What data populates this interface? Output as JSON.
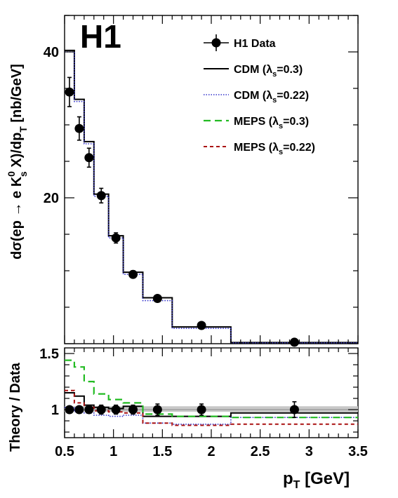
{
  "experiment_label": "H1",
  "colors": {
    "data": "#000000",
    "cdm_03": "#000000",
    "cdm_022": "#3333cc",
    "meps_03": "#22bb22",
    "meps_022": "#aa1111",
    "band": "#c8c8c8"
  },
  "chart_data": [
    {
      "type": "line",
      "panel": "main",
      "ylabel_parts": {
        "base": "dσ(ep → e K",
        "sup": "0",
        "sub": "s",
        "mid": " X)/dp",
        "sub2": "T",
        "unit": " [nb/GeV]"
      },
      "xlim": [
        0.5,
        3.5
      ],
      "ylim": [
        0,
        45
      ],
      "yticks": [
        20,
        40
      ],
      "ytick_labels": [
        "20",
        "40"
      ],
      "bin_edges": [
        0.5,
        0.6,
        0.7,
        0.8,
        0.95,
        1.1,
        1.3,
        1.6,
        2.2,
        3.5
      ],
      "data_points": [
        {
          "x": 0.55,
          "y": 34.5,
          "err": 2.0
        },
        {
          "x": 0.65,
          "y": 29.5,
          "err": 1.6
        },
        {
          "x": 0.75,
          "y": 25.5,
          "err": 1.3
        },
        {
          "x": 0.875,
          "y": 20.3,
          "err": 1.0
        },
        {
          "x": 1.025,
          "y": 14.5,
          "err": 0.7
        },
        {
          "x": 1.2,
          "y": 9.5,
          "err": 0.5
        },
        {
          "x": 1.45,
          "y": 6.2,
          "err": 0.3
        },
        {
          "x": 1.9,
          "y": 2.5,
          "err": 0.2
        },
        {
          "x": 2.85,
          "y": 0.2,
          "err": 0.1
        }
      ],
      "series": [
        {
          "name": "CDM (λs=0.3)",
          "style": "solid",
          "values": [
            40.2,
            33.5,
            27.7,
            20.5,
            14.8,
            9.8,
            6.3,
            2.3,
            0.15
          ]
        },
        {
          "name": "CDM (λs=0.22)",
          "style": "dotted",
          "values": [
            40.0,
            33.2,
            27.4,
            20.2,
            14.5,
            9.5,
            5.9,
            2.1,
            0.12
          ]
        }
      ]
    },
    {
      "type": "line",
      "panel": "ratio",
      "ylabel": "Theory / Data",
      "xlabel_parts": {
        "base": "p",
        "sub": "T",
        "unit": " [GeV]"
      },
      "xlim": [
        0.5,
        3.5
      ],
      "ylim": [
        0.75,
        1.55
      ],
      "yticks": [
        1,
        1.5
      ],
      "ytick_labels": [
        "1",
        "1.5"
      ],
      "xticks": [
        0.5,
        1,
        1.5,
        2,
        2.5,
        3,
        3.5
      ],
      "xtick_labels": [
        "0.5",
        "1",
        "1.5",
        "2",
        "2.5",
        "3",
        "3.5"
      ],
      "bin_edges": [
        0.5,
        0.6,
        0.7,
        0.8,
        0.95,
        1.1,
        1.3,
        1.6,
        2.2,
        3.5
      ],
      "band": [
        0.98,
        1.03
      ],
      "data_points": [
        {
          "x": 0.55,
          "y": 1.0,
          "err": 0.03
        },
        {
          "x": 0.65,
          "y": 1.0,
          "err": 0.03
        },
        {
          "x": 0.75,
          "y": 1.0,
          "err": 0.03
        },
        {
          "x": 0.875,
          "y": 1.0,
          "err": 0.04
        },
        {
          "x": 1.025,
          "y": 1.0,
          "err": 0.04
        },
        {
          "x": 1.2,
          "y": 1.0,
          "err": 0.04
        },
        {
          "x": 1.45,
          "y": 1.0,
          "err": 0.05
        },
        {
          "x": 1.9,
          "y": 1.0,
          "err": 0.05
        },
        {
          "x": 2.85,
          "y": 1.0,
          "err": 0.07
        }
      ],
      "series": [
        {
          "name": "CDM (λs=0.3)",
          "style": "solid",
          "values": [
            1.15,
            1.12,
            1.04,
            1.02,
            1.01,
            1.03,
            0.94,
            0.94,
            0.97
          ]
        },
        {
          "name": "CDM (λs=0.22)",
          "style": "dotted",
          "values": [
            1.02,
            0.98,
            0.97,
            0.95,
            0.94,
            0.95,
            0.88,
            0.87,
            0.93
          ]
        },
        {
          "name": "MEPS (λs=0.3)",
          "style": "dashed",
          "values": [
            1.44,
            1.38,
            1.25,
            1.14,
            1.09,
            1.06,
            0.96,
            0.94,
            0.93
          ]
        },
        {
          "name": "MEPS (λs=0.22)",
          "style": "shortdash",
          "values": [
            1.17,
            1.06,
            1.02,
            0.99,
            0.98,
            0.97,
            0.88,
            0.86,
            0.87
          ]
        }
      ]
    }
  ],
  "legend": {
    "placement": "top-right",
    "entries": [
      {
        "key": "data",
        "label": "H1 Data",
        "style": "marker"
      },
      {
        "key": "cdm_03",
        "base": "CDM (λ",
        "sub": "s",
        "rest": "=0.3)",
        "style": "solid"
      },
      {
        "key": "cdm_022",
        "base": "CDM (λ",
        "sub": "s",
        "rest": "=0.22)",
        "style": "dotted"
      },
      {
        "key": "meps_03",
        "base": "MEPS (λ",
        "sub": "s",
        "rest": "=0.3)",
        "style": "dashed"
      },
      {
        "key": "meps_022",
        "base": "MEPS (λ",
        "sub": "s",
        "rest": "=0.22)",
        "style": "shortdash"
      }
    ]
  }
}
